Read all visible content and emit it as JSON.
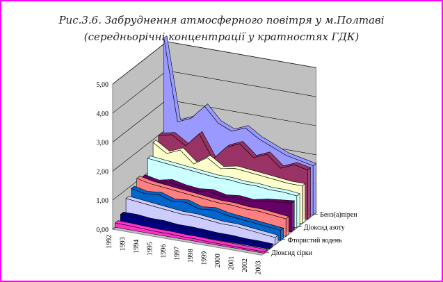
{
  "chart_data": {
    "type": "area",
    "projection": "3d",
    "title": "Рис.3.6. Забруднення атмосферного повітря у м.Полтаві",
    "subtitle": "(середньорічні концентрації у кратностях ГДК)",
    "x": [
      "1992",
      "1993",
      "1994",
      "1995",
      "1996",
      "1997",
      "1998",
      "1999",
      "2000",
      "2001",
      "2002",
      "2003"
    ],
    "ylim": [
      0,
      5
    ],
    "yticks": [
      "0,00",
      "1,00",
      "2,00",
      "3,00",
      "4,00",
      "5,00"
    ],
    "depth_labels": [
      "Бенз(а)пірен",
      "Діоксид азоту",
      "Фтористий водень",
      "Діоксид сірки"
    ],
    "series": [
      {
        "color": "#ff33cc",
        "values": [
          0.15,
          0.14,
          0.12,
          0.1,
          0.1,
          0.08,
          0.08,
          0.06,
          0.06,
          0.05,
          0.05,
          0.05
        ]
      },
      {
        "color": "#000080",
        "values": [
          0.3,
          0.3,
          0.25,
          0.25,
          0.2,
          0.2,
          0.18,
          0.15,
          0.15,
          0.12,
          0.12,
          0.1
        ]
      },
      {
        "color": "#ccccff",
        "values": [
          0.7,
          0.65,
          0.6,
          0.55,
          0.5,
          0.5,
          0.45,
          0.4,
          0.4,
          0.35,
          0.3,
          0.25
        ]
      },
      {
        "color": "#0066cc",
        "values": [
          0.9,
          0.8,
          0.85,
          0.7,
          0.75,
          0.6,
          0.65,
          0.55,
          0.5,
          0.45,
          0.4,
          0.35
        ]
      },
      {
        "color": "#ff8080",
        "values": [
          1.1,
          1.0,
          0.95,
          0.9,
          0.85,
          0.8,
          0.75,
          0.75,
          0.7,
          0.7,
          0.65,
          0.6
        ]
      },
      {
        "color": "#660066",
        "values": [
          1.0,
          0.9,
          1.0,
          0.9,
          0.85,
          0.9,
          0.8,
          0.85,
          0.8,
          0.9,
          0.95,
          1.0
        ]
      },
      {
        "color": "#ccffff",
        "values": [
          1.5,
          1.45,
          1.4,
          1.35,
          1.3,
          1.25,
          1.25,
          1.2,
          1.2,
          1.15,
          1.15,
          1.1
        ]
      },
      {
        "color": "#ffffcc",
        "values": [
          1.9,
          1.6,
          1.8,
          1.4,
          1.7,
          1.4,
          1.5,
          1.45,
          1.4,
          1.35,
          1.3,
          1.3
        ]
      },
      {
        "color": "#993366",
        "values": [
          2.0,
          2.1,
          1.8,
          2.3,
          1.5,
          2.0,
          2.2,
          1.8,
          2.0,
          1.6,
          1.8,
          1.7
        ]
      },
      {
        "color": "#9999ff",
        "values": [
          5.2,
          2.4,
          2.6,
          3.1,
          2.6,
          2.4,
          2.6,
          2.3,
          2.1,
          1.9,
          1.8,
          1.7
        ]
      }
    ]
  }
}
